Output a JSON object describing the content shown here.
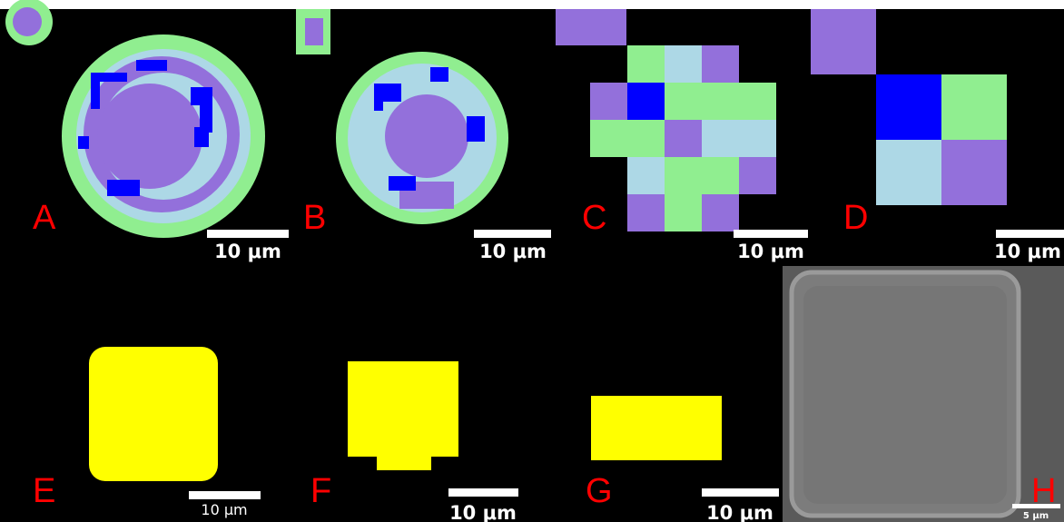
{
  "panels": [
    {
      "label": "A",
      "scale_bar": "10 μm"
    },
    {
      "label": "B",
      "scale_bar": "10 μm"
    },
    {
      "label": "C",
      "scale_bar": "10 μm"
    },
    {
      "label": "D",
      "scale_bar": "10 μm"
    },
    {
      "label": "E",
      "scale_bar": "10 μm"
    },
    {
      "label": "F",
      "scale_bar": "10 μm"
    },
    {
      "label": "G",
      "scale_bar": "10 μm"
    },
    {
      "label": "H",
      "scale_bar": "5 μm"
    }
  ]
}
